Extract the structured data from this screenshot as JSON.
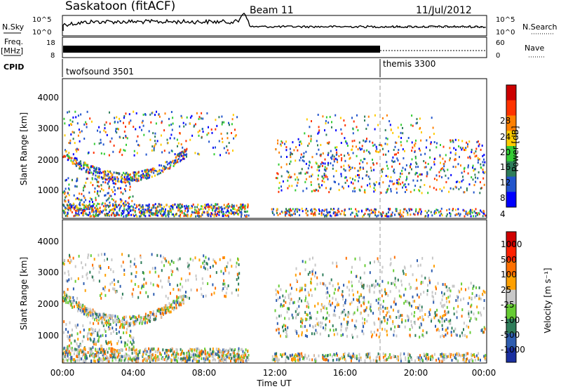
{
  "header": {
    "title": "Saskatoon (fitACF)",
    "beam": "Beam 11",
    "date": "11/Jul/2012"
  },
  "strip": {
    "nsky_label": "N.Sky",
    "nsearch_label": "N.Search",
    "freq_label": "Freq.",
    "freq_unit": "[MHz]",
    "nave_label": "Nave",
    "cpid_label": "CPID",
    "left_ticks_top": [
      "10^5",
      "10^0"
    ],
    "right_ticks_top": [
      "10^5",
      "10^0"
    ],
    "freq_ticks": [
      "18",
      "8"
    ],
    "nave_ticks": [
      "60",
      "0"
    ],
    "cpid_segments": [
      "twofsound 3501",
      "themis 3300"
    ]
  },
  "chart_data": [
    {
      "type": "heatmap",
      "title": "",
      "xlabel": "Time UT",
      "ylabel": "Slant Range [km]",
      "xlim": [
        0,
        24
      ],
      "ylim": [
        180,
        4600
      ],
      "x_ticks": [
        "00:00",
        "04:00",
        "08:00",
        "12:00",
        "16:00",
        "20:00",
        "00:00"
      ],
      "y_ticks": [
        "1000",
        "2000",
        "3000",
        "4000"
      ],
      "colorbar": {
        "label": "Power [dB]",
        "ticks": [
          "28",
          "24",
          "20",
          "16",
          "12",
          "8",
          "4"
        ],
        "colors": [
          "#0000ff",
          "#2255cc",
          "#2e7d5a",
          "#33cc33",
          "#ffcc00",
          "#ff8000",
          "#ff3300",
          "#cc0000"
        ]
      },
      "features": [
        {
          "name": "E-region echoes",
          "t": [
            0,
            10.5
          ],
          "range_km": [
            250,
            600
          ]
        },
        {
          "name": "F-region arc",
          "t": [
            0,
            7
          ],
          "range_km": [
            1400,
            2200
          ]
        },
        {
          "name": "afternoon band",
          "t": [
            12,
            24
          ],
          "range_km": [
            1200,
            2600
          ]
        }
      ]
    },
    {
      "type": "heatmap",
      "title": "",
      "xlabel": "Time UT",
      "ylabel": "Slant Range [km]",
      "xlim": [
        0,
        24
      ],
      "ylim": [
        180,
        4600
      ],
      "x_ticks": [
        "00:00",
        "04:00",
        "08:00",
        "12:00",
        "16:00",
        "20:00",
        "00:00"
      ],
      "y_ticks": [
        "1000",
        "2000",
        "3000",
        "4000"
      ],
      "colorbar": {
        "label": "Velocity [m s⁻¹]",
        "ticks": [
          "1000",
          "500",
          "100",
          "25",
          "-25",
          "-100",
          "-500",
          "-1000"
        ],
        "colors": [
          "#1a2fa0",
          "#2e5db0",
          "#2e7d5a",
          "#66cc33",
          "#c8c8c8",
          "#ffa000",
          "#ff7000",
          "#ff2000",
          "#d00000"
        ]
      }
    }
  ],
  "colors": {
    "frame": "#000000",
    "background": "#ffffff",
    "ground_scatter": "#c8c8c8"
  }
}
